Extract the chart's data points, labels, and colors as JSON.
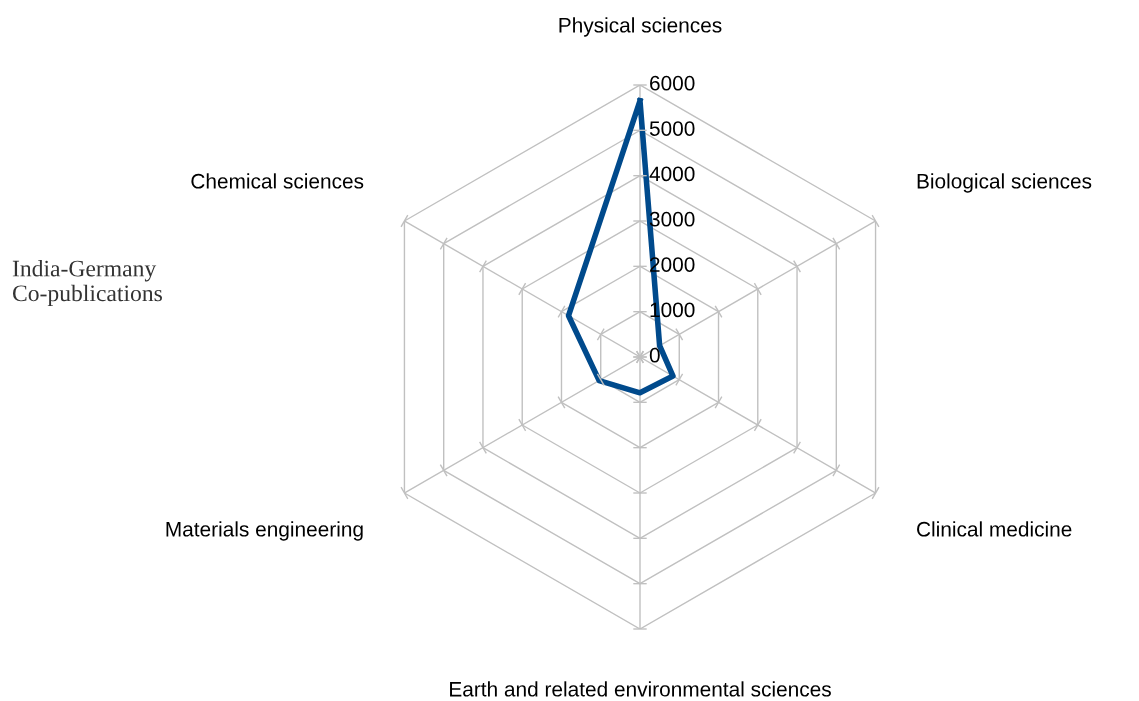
{
  "chart_data": {
    "type": "radar",
    "annotations": [
      "India-Germany\nCo-publications"
    ],
    "categories": [
      "Physical sciences",
      "Biological sciences",
      "Clinical medicine",
      "Earth and related environmental sciences",
      "Materials engineering",
      "Chemical sciences"
    ],
    "series": [
      {
        "color": "#004a8c",
        "values": [
          5650,
          500,
          840,
          790,
          1040,
          1820
        ]
      }
    ],
    "ylim": [
      0,
      6000
    ],
    "yticks": [
      0,
      1000,
      2000,
      3000,
      4000,
      5000,
      6000
    ],
    "grid": true,
    "marker": "none",
    "line_style": "solid"
  }
}
